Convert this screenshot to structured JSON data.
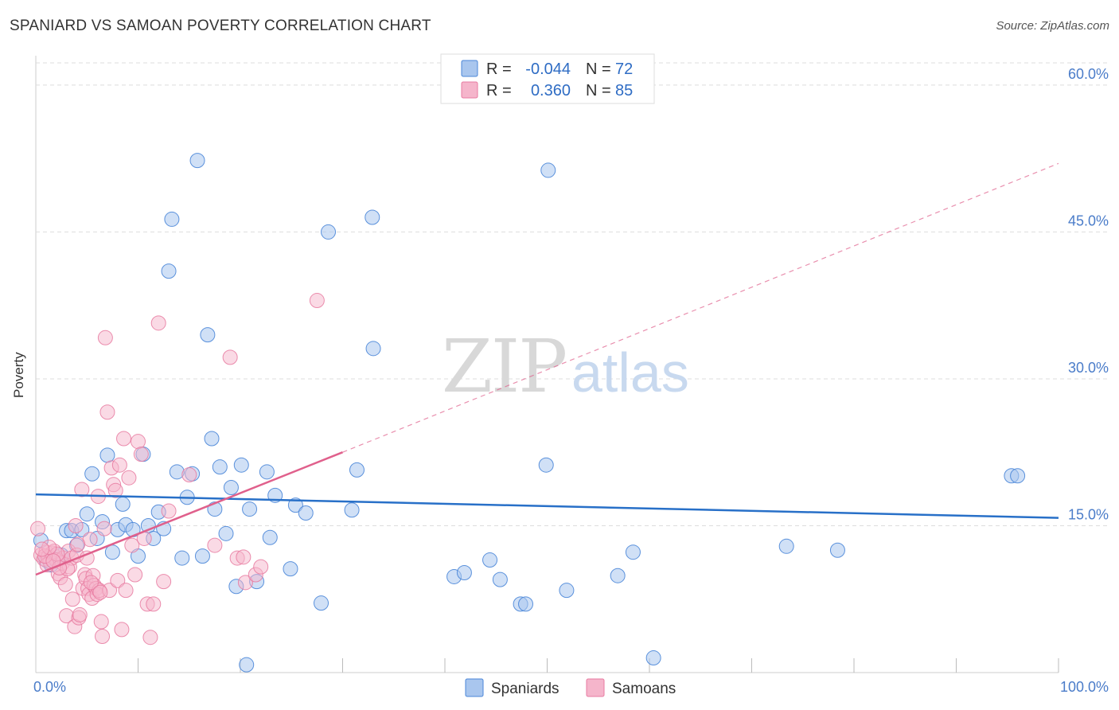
{
  "title": "SPANIARD VS SAMOAN POVERTY CORRELATION CHART",
  "source": "Source: ZipAtlas.com",
  "colors": {
    "blue": "#4a86d8",
    "blue_fill": "#a9c6ee",
    "blue_line": "#2870c8",
    "pink": "#e87aa0",
    "pink_fill": "#f5b5cb",
    "pink_line": "#e0608c",
    "tick_text": "#4a7cc9",
    "grid": "#dddddd"
  },
  "legend": {
    "r_label": "R =",
    "n_label": "N =",
    "rows": [
      {
        "r": "-0.044",
        "n": "72"
      },
      {
        "r": "0.360",
        "n": "85"
      }
    ]
  },
  "bottom_legend": [
    "Spaniards",
    "Samoans"
  ],
  "watermark": {
    "zip": "ZIP",
    "atlas": "atlas"
  },
  "chart_data": {
    "type": "scatter",
    "title": "SPANIARD VS SAMOAN POVERTY CORRELATION CHART",
    "xlabel": "",
    "ylabel": "Poverty",
    "xlim": [
      0,
      100
    ],
    "ylim": [
      0,
      63
    ],
    "x_tick_labels": [
      "0.0%",
      "100.0%"
    ],
    "y_ticks": [
      15,
      30,
      45,
      60
    ],
    "y_tick_labels": [
      "15.0%",
      "30.0%",
      "45.0%",
      "60.0%"
    ],
    "grid": true,
    "legend_position": "top-center",
    "series": [
      {
        "name": "Spaniards",
        "r": -0.044,
        "n": 72,
        "trend": {
          "x0": 0,
          "y0": 18.2,
          "x1": 100,
          "y1": 15.8
        },
        "points": [
          [
            0.5,
            13.5
          ],
          [
            1.0,
            11.5
          ],
          [
            1.5,
            11.0
          ],
          [
            2.0,
            11.5
          ],
          [
            2.5,
            12.0
          ],
          [
            3.0,
            14.5
          ],
          [
            3.5,
            14.5
          ],
          [
            4.0,
            13.0
          ],
          [
            4.5,
            14.6
          ],
          [
            5.0,
            16.2
          ],
          [
            5.5,
            20.3
          ],
          [
            6.0,
            13.7
          ],
          [
            6.5,
            15.4
          ],
          [
            7.0,
            22.2
          ],
          [
            7.5,
            12.3
          ],
          [
            8.0,
            14.6
          ],
          [
            8.5,
            17.2
          ],
          [
            8.8,
            15.1
          ],
          [
            9.5,
            14.6
          ],
          [
            10.0,
            11.9
          ],
          [
            10.5,
            22.3
          ],
          [
            11.0,
            15.0
          ],
          [
            11.5,
            13.7
          ],
          [
            12.0,
            16.4
          ],
          [
            12.5,
            14.7
          ],
          [
            13.0,
            41.0
          ],
          [
            13.3,
            46.3
          ],
          [
            13.8,
            20.5
          ],
          [
            14.3,
            11.7
          ],
          [
            14.8,
            17.9
          ],
          [
            15.3,
            20.3
          ],
          [
            15.8,
            52.3
          ],
          [
            16.3,
            11.9
          ],
          [
            16.8,
            34.5
          ],
          [
            17.2,
            23.9
          ],
          [
            17.5,
            16.7
          ],
          [
            18.0,
            21.0
          ],
          [
            18.6,
            14.2
          ],
          [
            19.1,
            18.9
          ],
          [
            19.6,
            8.8
          ],
          [
            20.1,
            21.2
          ],
          [
            20.6,
            0.8
          ],
          [
            20.9,
            16.7
          ],
          [
            21.6,
            9.3
          ],
          [
            22.6,
            20.5
          ],
          [
            22.9,
            13.8
          ],
          [
            23.4,
            18.1
          ],
          [
            24.9,
            10.6
          ],
          [
            25.4,
            17.1
          ],
          [
            26.4,
            16.3
          ],
          [
            27.9,
            7.1
          ],
          [
            28.6,
            45.0
          ],
          [
            30.9,
            16.6
          ],
          [
            31.4,
            20.7
          ],
          [
            32.9,
            46.5
          ],
          [
            33.0,
            33.1
          ],
          [
            40.9,
            9.8
          ],
          [
            41.9,
            10.2
          ],
          [
            44.4,
            11.5
          ],
          [
            45.4,
            9.5
          ],
          [
            47.4,
            7.0
          ],
          [
            47.9,
            7.0
          ],
          [
            49.9,
            21.2
          ],
          [
            50.1,
            51.3
          ],
          [
            51.9,
            8.4
          ],
          [
            56.9,
            9.9
          ],
          [
            58.4,
            12.3
          ],
          [
            60.4,
            1.5
          ],
          [
            73.4,
            12.9
          ],
          [
            78.4,
            12.5
          ],
          [
            95.4,
            20.1
          ],
          [
            96.0,
            20.1
          ]
        ]
      },
      {
        "name": "Samoans",
        "r": 0.36,
        "n": 85,
        "trend": {
          "x0": 0,
          "y0": 10.0,
          "x1": 30,
          "y1": 22.5,
          "dash_x1": 100,
          "dash_y1": 52.0
        },
        "points": [
          [
            0.2,
            14.7
          ],
          [
            0.5,
            12.0
          ],
          [
            0.8,
            11.6
          ],
          [
            1.0,
            12.3
          ],
          [
            1.2,
            11.8
          ],
          [
            1.4,
            11.3
          ],
          [
            1.6,
            12.2
          ],
          [
            1.8,
            12.4
          ],
          [
            2.0,
            11.5
          ],
          [
            2.2,
            10.1
          ],
          [
            2.4,
            9.7
          ],
          [
            2.6,
            11.2
          ],
          [
            2.7,
            11.7
          ],
          [
            2.9,
            9.0
          ],
          [
            3.0,
            5.8
          ],
          [
            3.2,
            12.4
          ],
          [
            3.3,
            10.8
          ],
          [
            3.5,
            11.7
          ],
          [
            3.6,
            7.5
          ],
          [
            3.8,
            4.7
          ],
          [
            3.9,
            15.0
          ],
          [
            4.0,
            12.0
          ],
          [
            4.2,
            5.6
          ],
          [
            4.3,
            5.9
          ],
          [
            4.5,
            18.7
          ],
          [
            4.6,
            8.6
          ],
          [
            4.8,
            10.0
          ],
          [
            4.9,
            9.6
          ],
          [
            5.0,
            11.7
          ],
          [
            5.1,
            8.6
          ],
          [
            5.2,
            8.0
          ],
          [
            5.3,
            13.6
          ],
          [
            5.5,
            7.6
          ],
          [
            5.6,
            9.9
          ],
          [
            5.7,
            8.9
          ],
          [
            5.9,
            8.6
          ],
          [
            6.0,
            8.0
          ],
          [
            6.1,
            18.0
          ],
          [
            6.2,
            8.4
          ],
          [
            6.4,
            5.2
          ],
          [
            6.5,
            3.7
          ],
          [
            6.7,
            14.7
          ],
          [
            6.8,
            34.2
          ],
          [
            7.0,
            26.6
          ],
          [
            7.2,
            8.4
          ],
          [
            7.4,
            20.9
          ],
          [
            7.6,
            19.2
          ],
          [
            7.8,
            18.6
          ],
          [
            8.0,
            9.4
          ],
          [
            8.2,
            21.2
          ],
          [
            8.4,
            4.4
          ],
          [
            8.6,
            23.9
          ],
          [
            8.8,
            8.4
          ],
          [
            9.1,
            19.9
          ],
          [
            9.4,
            13.0
          ],
          [
            9.7,
            10.0
          ],
          [
            10.0,
            23.6
          ],
          [
            10.3,
            22.3
          ],
          [
            10.6,
            13.7
          ],
          [
            10.9,
            7.0
          ],
          [
            11.2,
            3.6
          ],
          [
            11.5,
            7.0
          ],
          [
            12.0,
            35.7
          ],
          [
            12.5,
            9.3
          ],
          [
            13.0,
            16.5
          ],
          [
            15.0,
            20.2
          ],
          [
            17.5,
            13.0
          ],
          [
            19.0,
            32.2
          ],
          [
            19.7,
            11.7
          ],
          [
            20.3,
            11.8
          ],
          [
            20.5,
            9.2
          ],
          [
            21.5,
            10.0
          ],
          [
            22.0,
            10.8
          ],
          [
            27.5,
            38.0
          ],
          [
            1.1,
            11.0
          ],
          [
            2.1,
            12.1
          ],
          [
            3.1,
            10.6
          ],
          [
            0.9,
            11.9
          ],
          [
            1.3,
            12.8
          ],
          [
            4.1,
            13.1
          ],
          [
            5.4,
            9.2
          ],
          [
            6.3,
            8.2
          ],
          [
            2.3,
            10.7
          ],
          [
            1.7,
            11.4
          ],
          [
            0.6,
            12.6
          ]
        ]
      }
    ]
  }
}
